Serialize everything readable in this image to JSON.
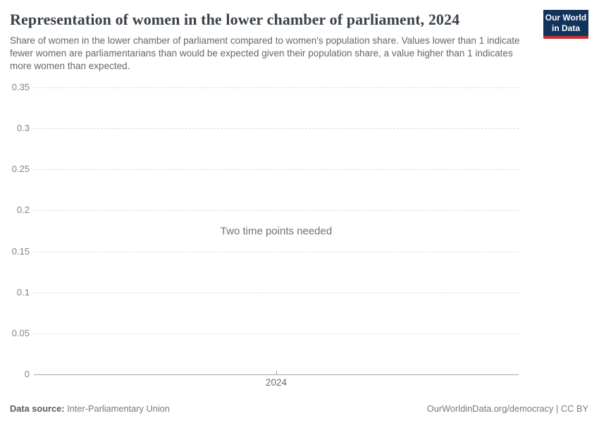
{
  "header": {
    "title": "Representation of women in the lower chamber of parliament, 2024",
    "subtitle": "Share of women in the lower chamber of parliament compared to women's population share. Values lower than 1 indicate fewer women are parliamentarians than would be expected given their population share, a value higher than 1 indicates more women than expected.",
    "logo": {
      "line1": "Our World",
      "line2": "in Data"
    }
  },
  "chart_data": {
    "type": "line",
    "title": "Representation of women in the lower chamber of parliament, 2024",
    "message": "Two time points needed",
    "series": [],
    "x": [],
    "xticks": [
      "2024"
    ],
    "yticks": [
      0,
      0.05,
      0.1,
      0.15,
      0.2,
      0.25,
      0.3,
      0.35
    ],
    "ylim": [
      0,
      0.35
    ],
    "grid": "horizontal-dashed",
    "legend": "none"
  },
  "colors": {
    "accent_navy": "#12335a",
    "accent_red": "#c52e2e",
    "grid_color": "#dcdcdc",
    "axis_color": "#a8a8a8",
    "title_text": "#3a414a",
    "subtitle_text": "#666666",
    "tick_text": "#838383",
    "xtick_text": "#6b6b6b",
    "message_text": "#6e7079",
    "footer_text": "#7a7a7a"
  },
  "footer": {
    "source_label": "Data source:",
    "source_value": "Inter-Parliamentary Union",
    "right_text": "OurWorldinData.org/democracy | CC BY"
  }
}
